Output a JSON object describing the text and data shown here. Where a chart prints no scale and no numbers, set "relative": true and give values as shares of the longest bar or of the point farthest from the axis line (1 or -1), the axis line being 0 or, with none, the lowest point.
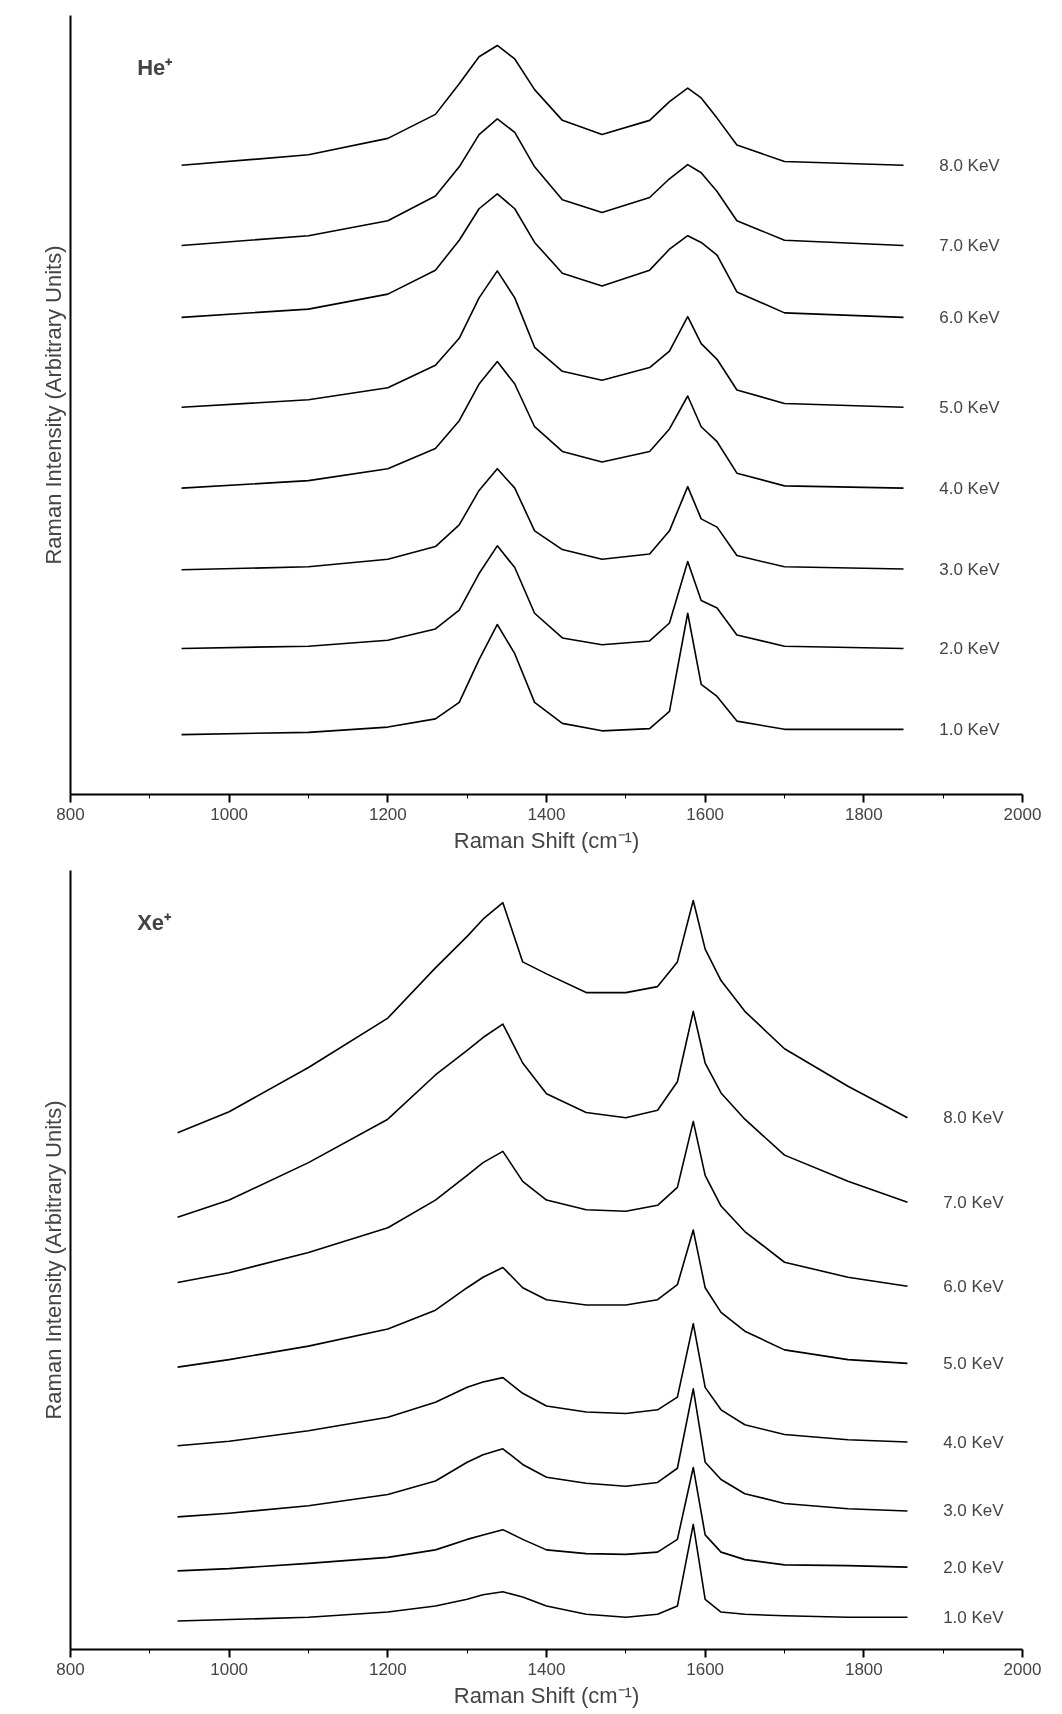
{
  "chart_data": [
    {
      "type": "line",
      "relative": true,
      "xlabel": "Raman Shift (cm⁻¹)",
      "ylabel": "Raman Intensity (Arbitrary Units)",
      "annotations": [
        "He⁺"
      ],
      "xlim": [
        800,
        2000
      ],
      "xticks": [
        800,
        {
          "value": 900,
          "label": null
        },
        1000,
        {
          "value": 1100,
          "label": null
        },
        1200,
        {
          "value": 1300,
          "label": null
        },
        1400,
        {
          "value": 1500,
          "label": null
        },
        1600,
        {
          "value": 1700,
          "label": null
        },
        1800,
        {
          "value": 1900,
          "label": null
        },
        2000
      ],
      "x": [
        940,
        1100,
        1200,
        1260,
        1290,
        1315,
        1338,
        1360,
        1385,
        1420,
        1470,
        1530,
        1555,
        1578,
        1595,
        1615,
        1640,
        1700,
        1850
      ],
      "series": [
        {
          "name": "8.0 KeV",
          "color": "#000000",
          "values": [
            0.84,
            0.854,
            0.876,
            0.908,
            0.949,
            0.985,
            1.0,
            0.982,
            0.941,
            0.9,
            0.881,
            0.9,
            0.925,
            0.943,
            0.93,
            0.903,
            0.867,
            0.845,
            0.84
          ]
        },
        {
          "name": "7.0 KeV",
          "color": "#000000",
          "values": [
            0.733,
            0.746,
            0.766,
            0.799,
            0.838,
            0.881,
            0.902,
            0.884,
            0.838,
            0.794,
            0.777,
            0.797,
            0.822,
            0.841,
            0.83,
            0.805,
            0.766,
            0.74,
            0.733
          ]
        },
        {
          "name": "6.0 KeV",
          "color": "#000000",
          "values": [
            0.637,
            0.648,
            0.668,
            0.7,
            0.74,
            0.782,
            0.802,
            0.782,
            0.737,
            0.696,
            0.679,
            0.7,
            0.728,
            0.746,
            0.737,
            0.72,
            0.671,
            0.643,
            0.637
          ]
        },
        {
          "name": "5.0 KeV",
          "color": "#000000",
          "values": [
            0.517,
            0.527,
            0.543,
            0.573,
            0.609,
            0.663,
            0.699,
            0.663,
            0.597,
            0.565,
            0.553,
            0.57,
            0.592,
            0.638,
            0.602,
            0.581,
            0.54,
            0.522,
            0.517
          ]
        },
        {
          "name": "4.0 KeV",
          "color": "#000000",
          "values": [
            0.409,
            0.419,
            0.435,
            0.462,
            0.499,
            0.548,
            0.578,
            0.548,
            0.491,
            0.458,
            0.444,
            0.458,
            0.488,
            0.532,
            0.491,
            0.471,
            0.429,
            0.412,
            0.409
          ]
        },
        {
          "name": "3.0 KeV",
          "color": "#000000",
          "values": [
            0.3,
            0.304,
            0.314,
            0.331,
            0.36,
            0.406,
            0.435,
            0.409,
            0.352,
            0.327,
            0.314,
            0.321,
            0.352,
            0.411,
            0.368,
            0.357,
            0.319,
            0.304,
            0.301
          ]
        },
        {
          "name": "2.0 KeV",
          "color": "#000000",
          "values": [
            0.195,
            0.198,
            0.206,
            0.221,
            0.246,
            0.295,
            0.332,
            0.303,
            0.242,
            0.209,
            0.2,
            0.205,
            0.229,
            0.311,
            0.259,
            0.249,
            0.213,
            0.198,
            0.195
          ]
        },
        {
          "name": "1.0 KeV",
          "color": "#000000",
          "values": [
            0.08,
            0.083,
            0.09,
            0.101,
            0.123,
            0.18,
            0.227,
            0.188,
            0.123,
            0.095,
            0.085,
            0.088,
            0.111,
            0.242,
            0.147,
            0.131,
            0.098,
            0.087,
            0.087
          ]
        }
      ]
    },
    {
      "type": "line",
      "relative": true,
      "xlabel": "Raman Shift (cm⁻¹)",
      "ylabel": "Raman Intensity (Arbitrary Units)",
      "annotations": [
        "Xe⁺"
      ],
      "xlim": [
        800,
        2000
      ],
      "xticks": [
        800,
        {
          "value": 900,
          "label": null
        },
        1000,
        {
          "value": 1100,
          "label": null
        },
        1200,
        {
          "value": 1300,
          "label": null
        },
        1400,
        {
          "value": 1500,
          "label": null
        },
        1600,
        {
          "value": 1700,
          "label": null
        },
        1800,
        {
          "value": 1900,
          "label": null
        },
        2000
      ],
      "x": [
        935,
        1000,
        1100,
        1200,
        1260,
        1300,
        1320,
        1345,
        1370,
        1400,
        1450,
        1500,
        1540,
        1565,
        1585,
        1600,
        1620,
        1650,
        1700,
        1780,
        1855
      ],
      "series": [
        {
          "name": "8.0 KeV",
          "color": "#000000",
          "values": [
            0.69,
            0.718,
            0.777,
            0.843,
            0.91,
            0.952,
            0.975,
            0.997,
            0.918,
            0.902,
            0.877,
            0.877,
            0.885,
            0.918,
            1.0,
            0.935,
            0.893,
            0.852,
            0.802,
            0.752,
            0.71
          ]
        },
        {
          "name": "7.0 KeV",
          "color": "#000000",
          "values": [
            0.577,
            0.6,
            0.65,
            0.708,
            0.767,
            0.8,
            0.817,
            0.835,
            0.783,
            0.742,
            0.717,
            0.71,
            0.72,
            0.758,
            0.852,
            0.783,
            0.743,
            0.708,
            0.66,
            0.625,
            0.597
          ]
        },
        {
          "name": "6.0 KeV",
          "color": "#000000",
          "values": [
            0.49,
            0.503,
            0.53,
            0.563,
            0.6,
            0.633,
            0.65,
            0.665,
            0.625,
            0.6,
            0.587,
            0.585,
            0.593,
            0.617,
            0.705,
            0.633,
            0.592,
            0.558,
            0.517,
            0.497,
            0.485
          ]
        },
        {
          "name": "5.0 KeV",
          "color": "#000000",
          "values": [
            0.377,
            0.387,
            0.405,
            0.428,
            0.453,
            0.483,
            0.497,
            0.51,
            0.483,
            0.467,
            0.46,
            0.46,
            0.467,
            0.487,
            0.56,
            0.483,
            0.45,
            0.425,
            0.4,
            0.387,
            0.382
          ]
        },
        {
          "name": "4.0 KeV",
          "color": "#000000",
          "values": [
            0.272,
            0.278,
            0.292,
            0.31,
            0.33,
            0.35,
            0.357,
            0.363,
            0.342,
            0.325,
            0.317,
            0.315,
            0.32,
            0.337,
            0.435,
            0.35,
            0.32,
            0.3,
            0.287,
            0.28,
            0.277
          ]
        },
        {
          "name": "3.0 KeV",
          "color": "#000000",
          "values": [
            0.177,
            0.182,
            0.192,
            0.207,
            0.225,
            0.25,
            0.26,
            0.268,
            0.247,
            0.23,
            0.222,
            0.218,
            0.223,
            0.242,
            0.348,
            0.25,
            0.227,
            0.208,
            0.195,
            0.188,
            0.185
          ]
        },
        {
          "name": "2.0 KeV",
          "color": "#000000",
          "values": [
            0.105,
            0.108,
            0.115,
            0.123,
            0.133,
            0.147,
            0.153,
            0.16,
            0.147,
            0.133,
            0.128,
            0.127,
            0.13,
            0.147,
            0.243,
            0.153,
            0.13,
            0.12,
            0.113,
            0.112,
            0.11
          ]
        },
        {
          "name": "1.0 KeV",
          "color": "#000000",
          "values": [
            0.038,
            0.04,
            0.043,
            0.05,
            0.058,
            0.067,
            0.073,
            0.077,
            0.07,
            0.058,
            0.047,
            0.043,
            0.047,
            0.058,
            0.167,
            0.067,
            0.05,
            0.047,
            0.045,
            0.043,
            0.043
          ]
        }
      ]
    }
  ]
}
